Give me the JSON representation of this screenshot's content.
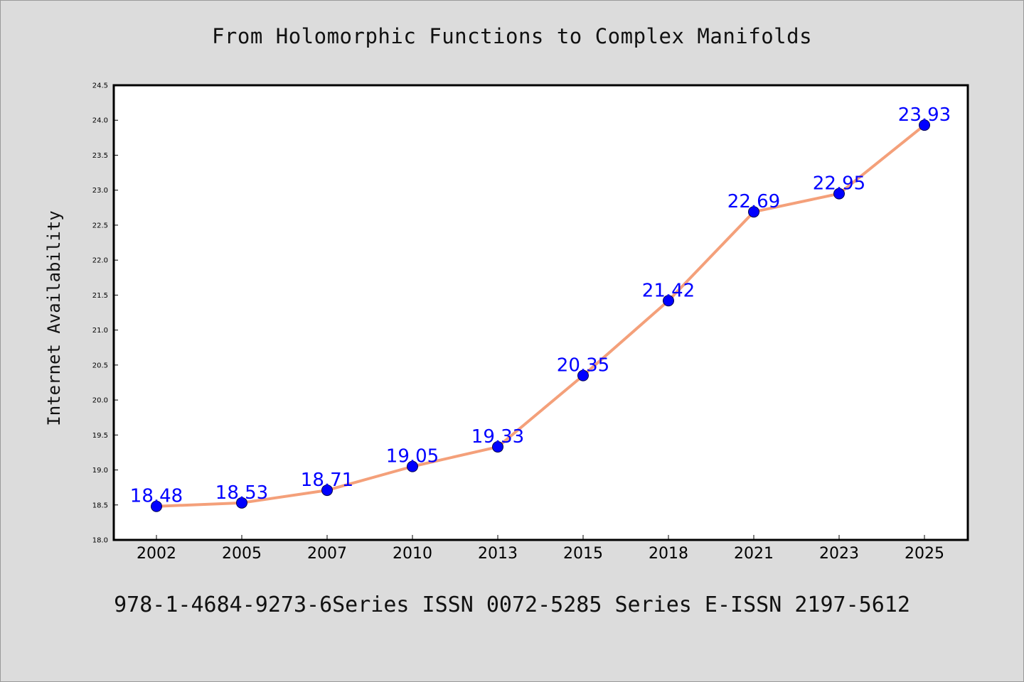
{
  "title": "From Holomorphic Functions to Complex Manifolds",
  "footer": "978-1-4684-9273-6Series ISSN 0072-5285 Series E-ISSN 2197-5612",
  "colors": {
    "background": "#dcdcdc",
    "plot_background": "#ffffff",
    "line": "#f4a07a",
    "marker": "#0000ff",
    "data_label": "#0000ff"
  },
  "chart_data": {
    "type": "line",
    "title": "From Holomorphic Functions to Complex Manifolds",
    "xlabel": "",
    "ylabel": "Internet Availability",
    "categories": [
      "2002",
      "2005",
      "2007",
      "2010",
      "2013",
      "2015",
      "2018",
      "2021",
      "2023",
      "2025"
    ],
    "series": [
      {
        "values": [
          18.48,
          18.53,
          18.71,
          19.05,
          19.33,
          20.35,
          21.42,
          22.69,
          22.95,
          23.93
        ]
      }
    ],
    "data_labels": [
      "18.48",
      "18.53",
      "18.71",
      "19.05",
      "19.33",
      "20.35",
      "21.42",
      "22.69",
      "22.95",
      "23.93"
    ],
    "ylim": [
      18.0,
      24.5
    ],
    "yticks": [
      18.0,
      18.5,
      19.0,
      19.5,
      20.0,
      20.5,
      21.0,
      21.5,
      22.0,
      22.5,
      23.0,
      23.5,
      24.0,
      24.5
    ],
    "grid": false,
    "legend": "none"
  }
}
